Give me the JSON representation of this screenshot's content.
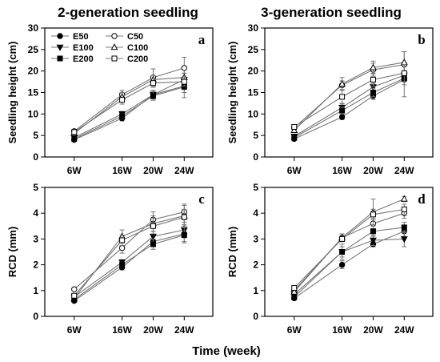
{
  "figure": {
    "column_titles": [
      "2-generation seedling",
      "3-generation seedling"
    ],
    "shared_xlabel": "Time (week)"
  },
  "legend": {
    "entries": [
      {
        "name": "E50",
        "marker": "circle",
        "fill": "filled"
      },
      {
        "name": "C50",
        "marker": "circle",
        "fill": "open"
      },
      {
        "name": "E100",
        "marker": "triangle-down",
        "fill": "filled"
      },
      {
        "name": "C100",
        "marker": "triangle-up",
        "fill": "open"
      },
      {
        "name": "E200",
        "marker": "square",
        "fill": "filled"
      },
      {
        "name": "C200",
        "marker": "square",
        "fill": "open"
      }
    ]
  },
  "colors": {
    "line": "#777777",
    "axis": "#000000",
    "marker_fill": "#000000",
    "open_fill": "#ffffff"
  },
  "chart_data": [
    {
      "type": "line",
      "panel_label": "a",
      "ylabel": "Seedling height (cm)",
      "xlabel": "",
      "categories": [
        "6W",
        "16W",
        "20W",
        "24W"
      ],
      "ylim": [
        0,
        30
      ],
      "yticks": [
        0,
        5,
        10,
        15,
        20,
        25,
        30
      ],
      "legend": "top-left",
      "series": [
        {
          "name": "E50",
          "values": [
            4.0,
            9.0,
            14.5,
            16.5
          ],
          "errors": [
            0.3,
            0.6,
            1.0,
            1.5
          ]
        },
        {
          "name": "C50",
          "values": [
            6.0,
            14.5,
            18.5,
            20.7
          ],
          "errors": [
            0.3,
            1.0,
            2.0,
            2.5
          ]
        },
        {
          "name": "E100",
          "values": [
            4.5,
            10.0,
            14.5,
            18.0
          ],
          "errors": [
            0.3,
            0.6,
            1.0,
            1.5
          ]
        },
        {
          "name": "C100",
          "values": [
            5.5,
            14.0,
            18.0,
            18.5
          ],
          "errors": [
            0.3,
            1.0,
            1.0,
            1.0
          ]
        },
        {
          "name": "E200",
          "values": [
            4.2,
            9.5,
            14.2,
            16.3
          ],
          "errors": [
            0.3,
            0.6,
            1.0,
            2.5
          ]
        },
        {
          "name": "C200",
          "values": [
            5.8,
            13.3,
            17.2,
            17.5
          ],
          "errors": [
            0.3,
            1.0,
            1.0,
            1.0
          ]
        }
      ]
    },
    {
      "type": "line",
      "panel_label": "b",
      "ylabel": "Seedling height (cm)",
      "xlabel": "",
      "categories": [
        "6W",
        "16W",
        "20W",
        "24W"
      ],
      "ylim": [
        0,
        30
      ],
      "yticks": [
        0,
        5,
        10,
        15,
        20,
        25,
        30
      ],
      "series": [
        {
          "name": "E50",
          "values": [
            4.2,
            9.3,
            14.2,
            18.0
          ],
          "errors": [
            0.3,
            0.6,
            0.8,
            4.0
          ]
        },
        {
          "name": "C50",
          "values": [
            6.8,
            16.7,
            20.3,
            21.5
          ],
          "errors": [
            0.4,
            1.0,
            1.5,
            3.0
          ]
        },
        {
          "name": "E100",
          "values": [
            4.8,
            11.5,
            16.3,
            19.0
          ],
          "errors": [
            0.3,
            0.8,
            0.8,
            1.0
          ]
        },
        {
          "name": "C100",
          "values": [
            6.2,
            17.0,
            20.8,
            22.0
          ],
          "errors": [
            0.4,
            1.5,
            1.5,
            2.5
          ]
        },
        {
          "name": "E200",
          "values": [
            4.5,
            10.8,
            15.0,
            18.3
          ],
          "errors": [
            0.3,
            0.8,
            1.0,
            1.5
          ]
        },
        {
          "name": "C200",
          "values": [
            7.0,
            14.0,
            18.0,
            19.5
          ],
          "errors": [
            0.4,
            1.5,
            1.5,
            2.0
          ]
        }
      ]
    },
    {
      "type": "line",
      "panel_label": "c",
      "ylabel": "RCD (mm)",
      "xlabel": "",
      "categories": [
        "6W",
        "16W",
        "20W",
        "24W"
      ],
      "ylim": [
        0,
        5
      ],
      "yticks": [
        0,
        1,
        2,
        3,
        4,
        5
      ],
      "series": [
        {
          "name": "E50",
          "values": [
            0.6,
            1.9,
            2.9,
            3.2
          ],
          "errors": [
            0.05,
            0.1,
            0.2,
            0.3
          ]
        },
        {
          "name": "C50",
          "values": [
            1.05,
            2.65,
            3.75,
            4.05
          ],
          "errors": [
            0.05,
            0.2,
            0.3,
            0.3
          ]
        },
        {
          "name": "E100",
          "values": [
            0.75,
            2.1,
            3.1,
            3.35
          ],
          "errors": [
            0.05,
            0.1,
            0.2,
            0.3
          ]
        },
        {
          "name": "C100",
          "values": [
            0.7,
            3.1,
            3.6,
            3.9
          ],
          "errors": [
            0.05,
            0.25,
            0.3,
            0.4
          ]
        },
        {
          "name": "E200",
          "values": [
            0.65,
            2.0,
            2.8,
            3.15
          ],
          "errors": [
            0.05,
            0.1,
            0.2,
            0.3
          ]
        },
        {
          "name": "C200",
          "values": [
            0.8,
            2.95,
            3.5,
            3.85
          ],
          "errors": [
            0.05,
            0.2,
            0.3,
            0.3
          ]
        }
      ]
    },
    {
      "type": "line",
      "panel_label": "d",
      "ylabel": "RCD (mm)",
      "xlabel": "",
      "categories": [
        "6W",
        "16W",
        "20W",
        "24W"
      ],
      "ylim": [
        0,
        5
      ],
      "yticks": [
        0,
        1,
        2,
        3,
        4,
        5
      ],
      "series": [
        {
          "name": "E50",
          "values": [
            0.7,
            2.0,
            2.8,
            3.3
          ],
          "errors": [
            0.05,
            0.15,
            0.1,
            0.2
          ]
        },
        {
          "name": "C50",
          "values": [
            1.0,
            3.05,
            3.6,
            4.0
          ],
          "errors": [
            0.05,
            0.15,
            0.2,
            0.2
          ]
        },
        {
          "name": "E100",
          "values": [
            0.85,
            2.5,
            2.95,
            3.0
          ],
          "errors": [
            0.05,
            0.2,
            0.2,
            0.3
          ]
        },
        {
          "name": "C100",
          "values": [
            0.95,
            3.05,
            4.05,
            4.55
          ],
          "errors": [
            0.05,
            0.15,
            0.5,
            0.1
          ]
        },
        {
          "name": "E200",
          "values": [
            0.75,
            2.5,
            3.3,
            3.45
          ],
          "errors": [
            0.05,
            0.3,
            0.2,
            0.2
          ]
        },
        {
          "name": "C200",
          "values": [
            1.1,
            3.0,
            3.95,
            4.15
          ],
          "errors": [
            0.05,
            0.1,
            0.2,
            0.2
          ]
        }
      ]
    }
  ]
}
